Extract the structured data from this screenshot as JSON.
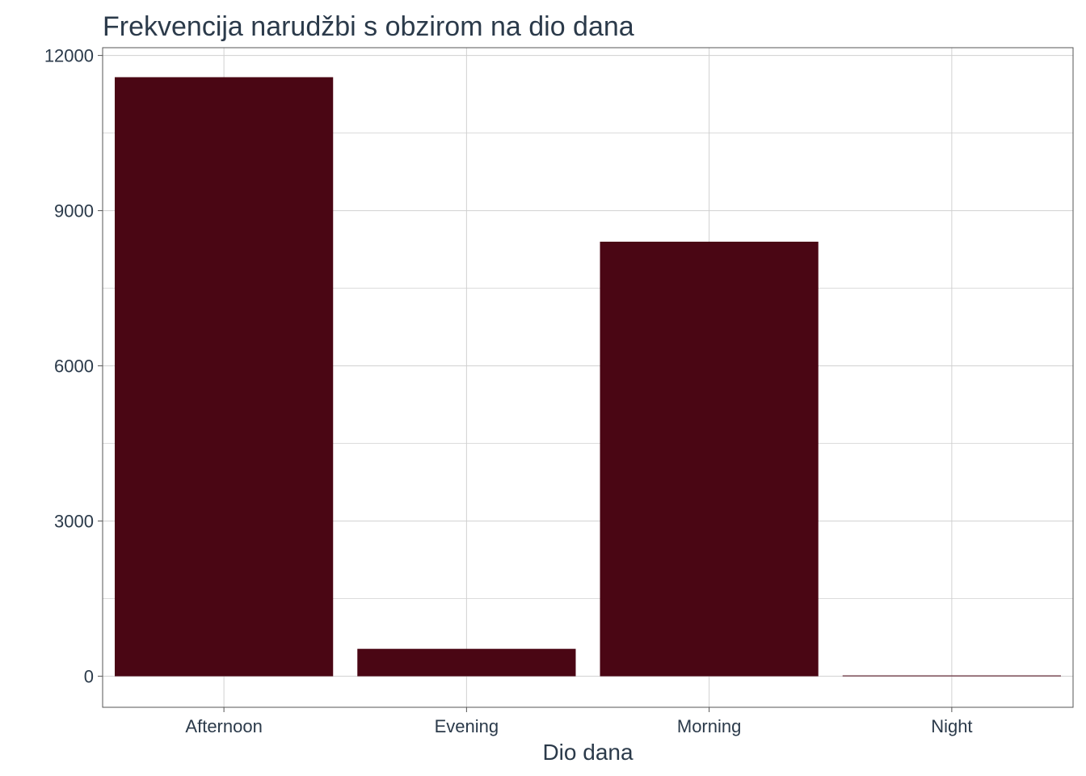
{
  "chart_data": {
    "type": "bar",
    "title": "Frekvencija narudžbi s obzirom na dio dana",
    "xlabel": "Dio dana",
    "ylabel": "",
    "categories": [
      "Afternoon",
      "Evening",
      "Morning",
      "Night"
    ],
    "values": [
      11580,
      530,
      8400,
      15
    ],
    "ylim": [
      -600,
      12150
    ],
    "yticks": [
      0,
      3000,
      6000,
      9000,
      12000
    ],
    "ytick_labels": [
      "0",
      "3000",
      "6000",
      "9000",
      "12000"
    ],
    "grid": true,
    "legend": "none"
  },
  "colors": {
    "bar": "#4a0614",
    "grid": "#d0d0d0",
    "panel_border": "#555555",
    "text": "#2b3a4a"
  }
}
